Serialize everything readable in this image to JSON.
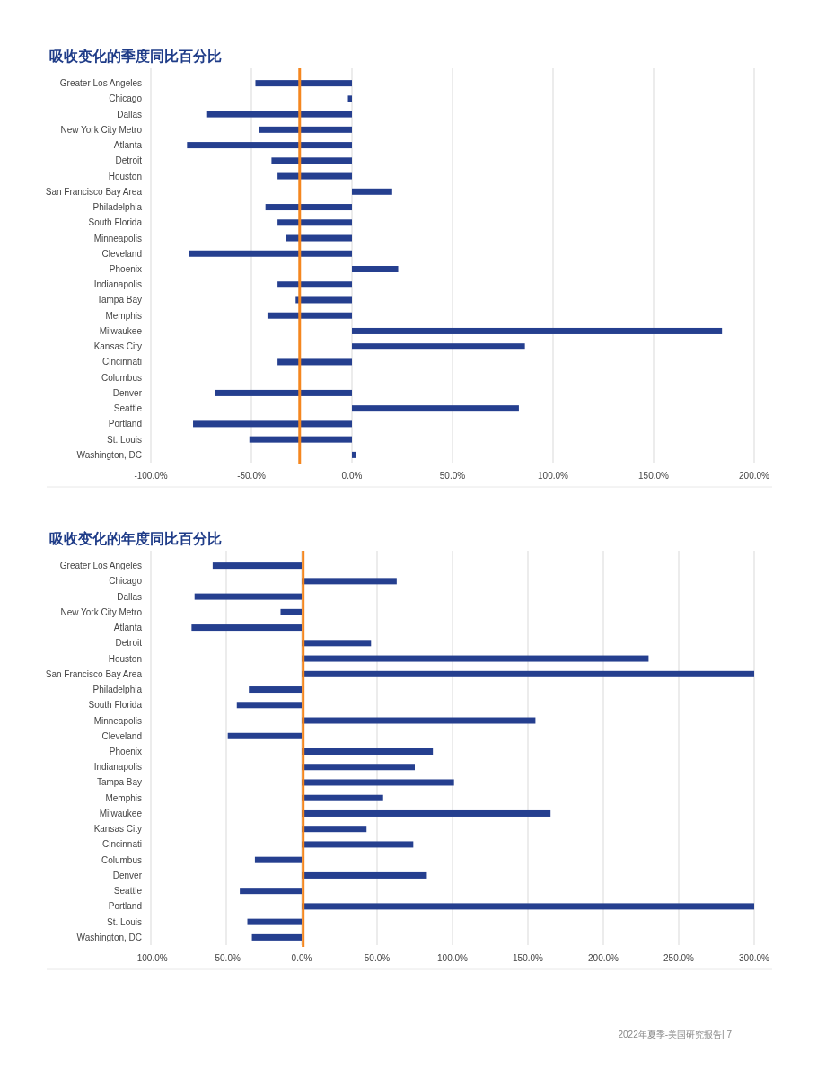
{
  "chart_data": [
    {
      "type": "bar",
      "orientation": "horizontal",
      "title": "吸收变化的季度同比百分比",
      "grid": "x",
      "color": "#253f8f",
      "categories": [
        "Greater Los Angeles",
        "Chicago",
        "Dallas",
        "New York City Metro",
        "Atlanta",
        "Detroit",
        "Houston",
        "San Francisco Bay Area",
        "Philadelphia",
        "South Florida",
        "Minneapolis",
        "Cleveland",
        "Phoenix",
        "Indianapolis",
        "Tampa Bay",
        "Memphis",
        "Milwaukee",
        "Kansas City",
        "Cincinnati",
        "Columbus",
        "Denver",
        "Seattle",
        "Portland",
        "St. Louis",
        "Washington, DC"
      ],
      "values": [
        -48,
        -2,
        -72,
        -46,
        -82,
        -40,
        -37,
        20,
        -43,
        -37,
        -33,
        -81,
        23,
        -37,
        -28,
        -42,
        184,
        86,
        -37,
        0,
        -68,
        83,
        -79,
        -51,
        2
      ],
      "xlim": [
        -100,
        200
      ],
      "xticks": [
        {
          "value": -100,
          "label": "-100.0%"
        },
        {
          "value": -50,
          "label": "-50.0%"
        },
        {
          "value": 0,
          "label": "0.0%"
        },
        {
          "value": 50,
          "label": "50.0%"
        },
        {
          "value": 100,
          "label": "100.0%"
        },
        {
          "value": 150,
          "label": "150.0%"
        },
        {
          "value": 200,
          "label": "200.0%"
        }
      ],
      "ref_lines": [
        {
          "axis": "x",
          "value": -26,
          "color": "#f5871f"
        }
      ]
    },
    {
      "type": "bar",
      "orientation": "horizontal",
      "title": "吸收变化的年度同比百分比",
      "grid": "x",
      "color": "#253f8f",
      "categories": [
        "Greater Los Angeles",
        "Chicago",
        "Dallas",
        "New York City Metro",
        "Atlanta",
        "Detroit",
        "Houston",
        "San Francisco Bay Area",
        "Philadelphia",
        "South Florida",
        "Minneapolis",
        "Cleveland",
        "Phoenix",
        "Indianapolis",
        "Tampa Bay",
        "Memphis",
        "Milwaukee",
        "Kansas City",
        "Cincinnati",
        "Columbus",
        "Denver",
        "Seattle",
        "Portland",
        "St. Louis",
        "Washington, DC"
      ],
      "values": [
        -59,
        63,
        -71,
        -14,
        -73,
        46,
        230,
        300,
        -35,
        -43,
        155,
        -49,
        87,
        75,
        101,
        54,
        165,
        43,
        74,
        -31,
        83,
        -41,
        300,
        -36,
        -33
      ],
      "xlim": [
        -100,
        300
      ],
      "xticks": [
        {
          "value": -100,
          "label": "-100.0%"
        },
        {
          "value": -50,
          "label": "-50.0%"
        },
        {
          "value": 0,
          "label": "0.0%"
        },
        {
          "value": 50,
          "label": "50.0%"
        },
        {
          "value": 100,
          "label": "100.0%"
        },
        {
          "value": 150,
          "label": "150.0%"
        },
        {
          "value": 200,
          "label": "200.0%"
        },
        {
          "value": 250,
          "label": "250.0%"
        },
        {
          "value": 300,
          "label": "300.0%"
        }
      ],
      "ref_lines": [
        {
          "axis": "x",
          "value": 1,
          "color": "#f5871f"
        }
      ],
      "annotations": [
        "2022年夏季-美国研究报告| 7"
      ]
    }
  ]
}
